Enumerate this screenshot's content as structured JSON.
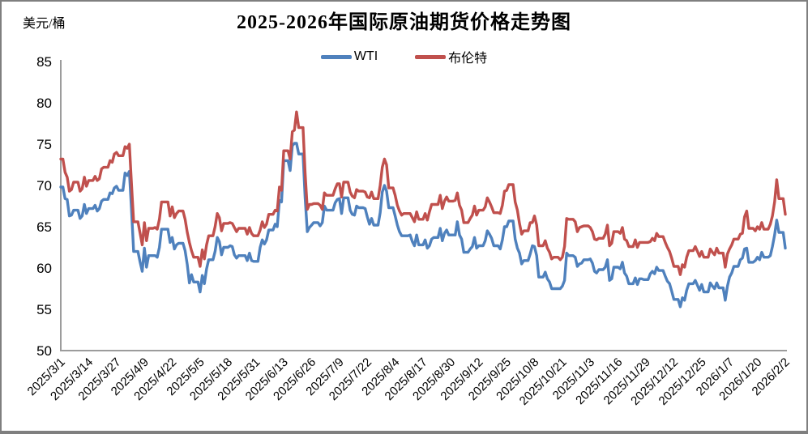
{
  "header": {
    "title": "2025-2026年国际原油期货价格走势图",
    "unit_label": "美元/桶"
  },
  "legend": [
    {
      "label": "WTI",
      "color": "#4F81BD"
    },
    {
      "label": "布伦特",
      "color": "#C0504D"
    }
  ],
  "colors": {
    "axis": "#9c9c9c",
    "border": "#7f7f7f",
    "text": "#000000",
    "background": "#ffffff",
    "wti": "#4F81BD",
    "brent": "#C0504D"
  },
  "chart_data": {
    "type": "line",
    "title": "2025-2026年国际原油期货价格走势图",
    "xlabel": "",
    "ylabel": "美元/桶",
    "ylim": [
      50,
      85
    ],
    "yticks": [
      85,
      80,
      75,
      70,
      65,
      60,
      55,
      50
    ],
    "grid": false,
    "legend_position": "top-center",
    "x_start": "2025/3/1",
    "x_end": "2026/2/2",
    "xtick_interval_days": 13,
    "xtick_labels": [
      "2025/3/1",
      "2025/3/14",
      "2025/3/27",
      "2025/4/9",
      "2025/4/22",
      "2025/5/5",
      "2025/5/18",
      "2025/5/31",
      "2025/6/13",
      "2025/6/26",
      "2025/7/9",
      "2025/7/22",
      "2025/8/4",
      "2025/8/17",
      "2025/8/30",
      "2025/9/12",
      "2025/9/25",
      "2025/10/8",
      "2025/10/21",
      "2025/11/3",
      "2025/11/16",
      "2025/11/29",
      "2025/12/12",
      "2025/12/25",
      "2026/1/7",
      "2026/1/20",
      "2026/2/2"
    ],
    "weekend_fill": "previous-close",
    "series": [
      {
        "key": "wti",
        "name": "WTI",
        "color": "#4F81BD"
      },
      {
        "key": "brent",
        "name": "布伦特",
        "color": "#C0504D"
      }
    ],
    "points_format": [
      "date",
      "WTI",
      "布伦特"
    ],
    "points": [
      [
        "2025/3/1",
        69.8,
        73.2
      ],
      [
        "2025/3/3",
        68.4,
        71.6
      ],
      [
        "2025/3/4",
        68.3,
        71.0
      ],
      [
        "2025/3/5",
        66.3,
        69.3
      ],
      [
        "2025/3/6",
        66.4,
        69.5
      ],
      [
        "2025/3/7",
        67.0,
        70.4
      ],
      [
        "2025/3/10",
        66.0,
        69.3
      ],
      [
        "2025/3/11",
        66.3,
        69.6
      ],
      [
        "2025/3/12",
        67.7,
        71.0
      ],
      [
        "2025/3/13",
        66.6,
        69.9
      ],
      [
        "2025/3/14",
        67.2,
        70.6
      ],
      [
        "2025/3/17",
        67.6,
        71.1
      ],
      [
        "2025/3/18",
        66.9,
        70.6
      ],
      [
        "2025/3/19",
        67.2,
        70.8
      ],
      [
        "2025/3/20",
        68.1,
        72.0
      ],
      [
        "2025/3/21",
        68.3,
        72.2
      ],
      [
        "2025/3/24",
        69.1,
        73.0
      ],
      [
        "2025/3/25",
        69.0,
        72.8
      ],
      [
        "2025/3/26",
        69.7,
        73.8
      ],
      [
        "2025/3/27",
        69.9,
        74.0
      ],
      [
        "2025/3/28",
        69.4,
        73.6
      ],
      [
        "2025/3/31",
        71.5,
        74.7
      ],
      [
        "2025/4/1",
        71.2,
        74.5
      ],
      [
        "2025/4/2",
        71.7,
        75.0
      ],
      [
        "2025/4/3",
        67.0,
        70.1
      ],
      [
        "2025/4/4",
        62.0,
        65.6
      ],
      [
        "2025/4/7",
        60.7,
        64.2
      ],
      [
        "2025/4/8",
        59.6,
        62.8
      ],
      [
        "2025/4/9",
        62.4,
        65.5
      ],
      [
        "2025/4/10",
        60.1,
        63.3
      ],
      [
        "2025/4/11",
        61.5,
        64.8
      ],
      [
        "2025/4/14",
        61.5,
        64.9
      ],
      [
        "2025/4/15",
        61.3,
        64.7
      ],
      [
        "2025/4/16",
        62.5,
        65.9
      ],
      [
        "2025/4/17",
        64.7,
        68.0
      ],
      [
        "2025/4/21",
        63.1,
        66.3
      ],
      [
        "2025/4/22",
        63.7,
        67.4
      ],
      [
        "2025/4/23",
        62.3,
        66.1
      ],
      [
        "2025/4/24",
        62.8,
        66.6
      ],
      [
        "2025/4/25",
        63.0,
        66.9
      ],
      [
        "2025/4/28",
        62.1,
        65.9
      ],
      [
        "2025/4/29",
        60.4,
        64.3
      ],
      [
        "2025/4/30",
        58.2,
        63.1
      ],
      [
        "2025/5/1",
        59.2,
        62.1
      ],
      [
        "2025/5/2",
        58.3,
        61.3
      ],
      [
        "2025/5/5",
        57.1,
        60.2
      ],
      [
        "2025/5/6",
        59.1,
        62.2
      ],
      [
        "2025/5/7",
        58.1,
        61.1
      ],
      [
        "2025/5/8",
        59.9,
        62.8
      ],
      [
        "2025/5/9",
        61.0,
        63.9
      ],
      [
        "2025/5/12",
        62.0,
        65.0
      ],
      [
        "2025/5/13",
        63.7,
        66.6
      ],
      [
        "2025/5/14",
        63.2,
        66.1
      ],
      [
        "2025/5/15",
        61.6,
        64.5
      ],
      [
        "2025/5/16",
        62.5,
        65.4
      ],
      [
        "2025/5/19",
        62.7,
        65.5
      ],
      [
        "2025/5/20",
        62.6,
        65.4
      ],
      [
        "2025/5/21",
        61.6,
        64.9
      ],
      [
        "2025/5/22",
        61.2,
        64.4
      ],
      [
        "2025/5/23",
        61.5,
        64.8
      ],
      [
        "2025/5/27",
        60.9,
        64.1
      ],
      [
        "2025/5/28",
        61.8,
        64.9
      ],
      [
        "2025/5/29",
        60.9,
        64.2
      ],
      [
        "2025/5/30",
        60.8,
        63.9
      ],
      [
        "2025/6/2",
        62.5,
        64.6
      ],
      [
        "2025/6/3",
        63.4,
        65.6
      ],
      [
        "2025/6/4",
        62.9,
        64.9
      ],
      [
        "2025/6/5",
        63.4,
        65.3
      ],
      [
        "2025/6/6",
        64.6,
        66.5
      ],
      [
        "2025/6/9",
        65.3,
        67.0
      ],
      [
        "2025/6/10",
        65.0,
        66.9
      ],
      [
        "2025/6/11",
        68.2,
        69.8
      ],
      [
        "2025/6/12",
        68.0,
        69.4
      ],
      [
        "2025/6/13",
        73.0,
        74.2
      ],
      [
        "2025/6/16",
        71.8,
        73.2
      ],
      [
        "2025/6/17",
        74.8,
        76.5
      ],
      [
        "2025/6/18",
        75.1,
        76.7
      ],
      [
        "2025/6/19",
        75.1,
        78.9
      ],
      [
        "2025/6/20",
        73.8,
        77.0
      ],
      [
        "2025/6/23",
        68.5,
        71.5
      ],
      [
        "2025/6/24",
        64.4,
        67.1
      ],
      [
        "2025/6/25",
        64.9,
        67.7
      ],
      [
        "2025/6/26",
        65.2,
        67.7
      ],
      [
        "2025/6/27",
        65.5,
        67.8
      ],
      [
        "2025/6/30",
        65.1,
        67.6
      ],
      [
        "2025/7/1",
        65.5,
        67.1
      ],
      [
        "2025/7/2",
        67.5,
        69.1
      ],
      [
        "2025/7/3",
        67.0,
        68.8
      ],
      [
        "2025/7/7",
        67.9,
        69.6
      ],
      [
        "2025/7/8",
        68.3,
        70.2
      ],
      [
        "2025/7/9",
        68.4,
        70.2
      ],
      [
        "2025/7/10",
        66.6,
        68.6
      ],
      [
        "2025/7/11",
        68.5,
        70.4
      ],
      [
        "2025/7/14",
        67.0,
        69.2
      ],
      [
        "2025/7/15",
        66.5,
        68.7
      ],
      [
        "2025/7/16",
        66.4,
        68.5
      ],
      [
        "2025/7/17",
        67.5,
        69.5
      ],
      [
        "2025/7/18",
        67.3,
        69.3
      ],
      [
        "2025/7/21",
        67.2,
        69.2
      ],
      [
        "2025/7/22",
        66.2,
        68.6
      ],
      [
        "2025/7/23",
        65.3,
        68.5
      ],
      [
        "2025/7/24",
        66.0,
        69.2
      ],
      [
        "2025/7/25",
        65.2,
        68.4
      ],
      [
        "2025/7/28",
        66.7,
        70.0
      ],
      [
        "2025/7/29",
        69.2,
        72.2
      ],
      [
        "2025/7/30",
        70.0,
        73.2
      ],
      [
        "2025/7/31",
        69.3,
        72.5
      ],
      [
        "2025/8/1",
        67.3,
        69.7
      ],
      [
        "2025/8/4",
        66.3,
        68.8
      ],
      [
        "2025/8/5",
        65.2,
        67.6
      ],
      [
        "2025/8/6",
        64.4,
        66.9
      ],
      [
        "2025/8/7",
        63.9,
        66.4
      ],
      [
        "2025/8/8",
        63.9,
        66.6
      ],
      [
        "2025/8/11",
        64.0,
        66.6
      ],
      [
        "2025/8/12",
        63.2,
        66.1
      ],
      [
        "2025/8/13",
        62.7,
        65.6
      ],
      [
        "2025/8/14",
        64.0,
        66.8
      ],
      [
        "2025/8/15",
        62.8,
        65.9
      ],
      [
        "2025/8/18",
        63.4,
        66.6
      ],
      [
        "2025/8/19",
        62.4,
        65.8
      ],
      [
        "2025/8/20",
        62.7,
        66.8
      ],
      [
        "2025/8/21",
        63.5,
        67.7
      ],
      [
        "2025/8/22",
        63.7,
        67.7
      ],
      [
        "2025/8/25",
        64.8,
        68.8
      ],
      [
        "2025/8/26",
        63.3,
        67.2
      ],
      [
        "2025/8/27",
        64.2,
        68.1
      ],
      [
        "2025/8/28",
        64.6,
        68.6
      ],
      [
        "2025/8/29",
        64.0,
        68.1
      ],
      [
        "2025/9/1",
        64.0,
        68.2
      ],
      [
        "2025/9/2",
        65.6,
        69.1
      ],
      [
        "2025/9/3",
        64.0,
        67.6
      ],
      [
        "2025/9/4",
        63.5,
        67.0
      ],
      [
        "2025/9/5",
        61.9,
        65.5
      ],
      [
        "2025/9/8",
        62.3,
        66.0
      ],
      [
        "2025/9/9",
        62.6,
        66.4
      ],
      [
        "2025/9/10",
        63.7,
        67.5
      ],
      [
        "2025/9/11",
        62.4,
        66.4
      ],
      [
        "2025/9/12",
        62.7,
        67.0
      ],
      [
        "2025/9/15",
        63.3,
        67.4
      ],
      [
        "2025/9/16",
        64.5,
        68.5
      ],
      [
        "2025/9/17",
        64.1,
        68.0
      ],
      [
        "2025/9/18",
        63.6,
        67.4
      ],
      [
        "2025/9/19",
        62.7,
        66.7
      ],
      [
        "2025/9/22",
        62.3,
        66.6
      ],
      [
        "2025/9/23",
        63.4,
        67.6
      ],
      [
        "2025/9/24",
        65.0,
        69.3
      ],
      [
        "2025/9/25",
        65.0,
        69.4
      ],
      [
        "2025/9/26",
        65.7,
        70.1
      ],
      [
        "2025/9/29",
        63.5,
        68.0
      ],
      [
        "2025/9/30",
        62.4,
        67.0
      ],
      [
        "2025/10/1",
        61.8,
        65.4
      ],
      [
        "2025/10/2",
        60.5,
        64.1
      ],
      [
        "2025/10/3",
        60.9,
        64.5
      ],
      [
        "2025/10/6",
        61.7,
        65.5
      ],
      [
        "2025/10/7",
        62.7,
        65.5
      ],
      [
        "2025/10/8",
        62.6,
        66.3
      ],
      [
        "2025/10/9",
        61.5,
        65.2
      ],
      [
        "2025/10/10",
        58.9,
        62.7
      ],
      [
        "2025/10/13",
        59.5,
        63.3
      ],
      [
        "2025/10/14",
        58.7,
        62.4
      ],
      [
        "2025/10/15",
        58.3,
        61.9
      ],
      [
        "2025/10/16",
        57.5,
        61.1
      ],
      [
        "2025/10/17",
        57.5,
        61.3
      ],
      [
        "2025/10/20",
        57.5,
        61.0
      ],
      [
        "2025/10/21",
        57.8,
        61.3
      ],
      [
        "2025/10/22",
        58.5,
        62.6
      ],
      [
        "2025/10/23",
        61.8,
        66.0
      ],
      [
        "2025/10/24",
        61.5,
        65.9
      ],
      [
        "2025/10/27",
        61.3,
        65.6
      ],
      [
        "2025/10/28",
        60.2,
        64.4
      ],
      [
        "2025/10/29",
        60.5,
        64.9
      ],
      [
        "2025/10/30",
        60.6,
        65.0
      ],
      [
        "2025/10/31",
        61.0,
        65.1
      ],
      [
        "2025/11/3",
        61.1,
        64.9
      ],
      [
        "2025/11/4",
        60.6,
        64.4
      ],
      [
        "2025/11/5",
        59.6,
        63.5
      ],
      [
        "2025/11/6",
        59.4,
        63.4
      ],
      [
        "2025/11/7",
        59.8,
        63.6
      ],
      [
        "2025/11/10",
        60.1,
        64.1
      ],
      [
        "2025/11/11",
        61.0,
        65.2
      ],
      [
        "2025/11/12",
        58.5,
        62.7
      ],
      [
        "2025/11/13",
        58.7,
        63.0
      ],
      [
        "2025/11/14",
        60.1,
        64.4
      ],
      [
        "2025/11/17",
        59.9,
        64.2
      ],
      [
        "2025/11/18",
        60.7,
        64.9
      ],
      [
        "2025/11/19",
        59.4,
        63.5
      ],
      [
        "2025/11/20",
        59.0,
        63.3
      ],
      [
        "2025/11/21",
        58.1,
        62.6
      ],
      [
        "2025/11/24",
        58.8,
        63.4
      ],
      [
        "2025/11/25",
        58.0,
        62.5
      ],
      [
        "2025/11/26",
        58.7,
        63.1
      ],
      [
        "2025/11/28",
        58.6,
        63.1
      ],
      [
        "2025/12/1",
        59.3,
        63.2
      ],
      [
        "2025/12/2",
        59.6,
        63.6
      ],
      [
        "2025/12/3",
        59.3,
        63.3
      ],
      [
        "2025/12/4",
        60.1,
        64.2
      ],
      [
        "2025/12/5",
        59.7,
        63.8
      ],
      [
        "2025/12/8",
        59.0,
        63.1
      ],
      [
        "2025/12/9",
        58.4,
        62.5
      ],
      [
        "2025/12/10",
        58.1,
        62.0
      ],
      [
        "2025/12/11",
        57.2,
        61.2
      ],
      [
        "2025/12/12",
        56.2,
        60.2
      ],
      [
        "2025/12/15",
        55.3,
        59.2
      ],
      [
        "2025/12/16",
        56.4,
        60.4
      ],
      [
        "2025/12/17",
        56.1,
        60.1
      ],
      [
        "2025/12/18",
        57.3,
        61.3
      ],
      [
        "2025/12/19",
        58.1,
        62.1
      ],
      [
        "2025/12/22",
        58.5,
        62.6
      ],
      [
        "2025/12/23",
        57.9,
        62.0
      ],
      [
        "2025/12/24",
        57.3,
        61.4
      ],
      [
        "2025/12/25",
        58.0,
        62.0
      ],
      [
        "2025/12/26",
        57.1,
        61.3
      ],
      [
        "2025/12/29",
        58.2,
        62.3
      ],
      [
        "2025/12/30",
        57.8,
        61.9
      ],
      [
        "2025/12/31",
        57.5,
        61.6
      ],
      [
        "2026/1/1",
        58.2,
        62.4
      ],
      [
        "2026/1/2",
        57.6,
        61.8
      ],
      [
        "2026/1/5",
        56.1,
        60.1
      ],
      [
        "2026/1/6",
        57.8,
        61.7
      ],
      [
        "2026/1/7",
        58.9,
        62.3
      ],
      [
        "2026/1/8",
        59.4,
        62.8
      ],
      [
        "2026/1/9",
        60.2,
        63.5
      ],
      [
        "2026/1/12",
        61.0,
        64.1
      ],
      [
        "2026/1/13",
        61.2,
        64.2
      ],
      [
        "2026/1/14",
        62.3,
        66.2
      ],
      [
        "2026/1/15",
        62.4,
        66.9
      ],
      [
        "2026/1/16",
        60.7,
        64.8
      ],
      [
        "2026/1/19",
        60.9,
        64.5
      ],
      [
        "2026/1/20",
        61.3,
        65.0
      ],
      [
        "2026/1/21",
        61.0,
        64.7
      ],
      [
        "2026/1/22",
        61.9,
        65.5
      ],
      [
        "2026/1/23",
        61.3,
        64.7
      ],
      [
        "2026/1/26",
        61.5,
        65.3
      ],
      [
        "2026/1/27",
        62.6,
        66.3
      ],
      [
        "2026/1/28",
        64.0,
        68.0
      ],
      [
        "2026/1/29",
        65.8,
        70.7
      ],
      [
        "2026/1/30",
        64.3,
        68.4
      ],
      [
        "2026/2/2",
        62.4,
        66.5
      ]
    ]
  }
}
